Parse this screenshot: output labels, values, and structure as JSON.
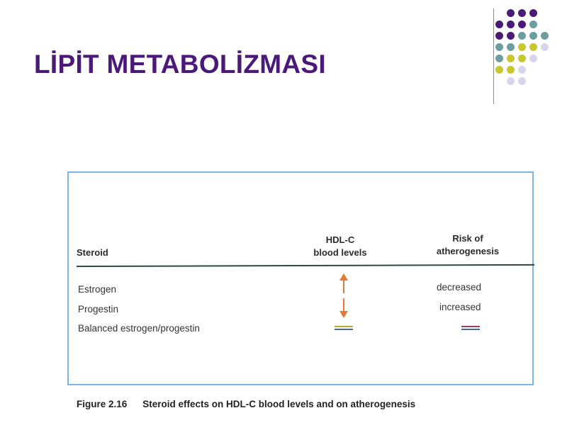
{
  "slide": {
    "title": "LİPİT METABOLİZMASI"
  },
  "decoration": {
    "dot_colors": {
      "purple": "#4b1a78",
      "teal": "#6b9ea0",
      "yellow": "#c8c82a",
      "lavender": "#d8d6ec"
    }
  },
  "figure": {
    "columns": {
      "steroid": "Steroid",
      "hdl_line1": "HDL-C",
      "hdl_line2": "blood levels",
      "risk_line1": "Risk of",
      "risk_line2": "atherogenesis"
    },
    "rows": [
      {
        "steroid": "Estrogen",
        "hdl_symbol": "up-arrow-icon",
        "risk": "decreased"
      },
      {
        "steroid": "Progestin",
        "hdl_symbol": "down-arrow-icon",
        "risk": "increased"
      },
      {
        "steroid": "Balanced estrogen/progestin",
        "hdl_symbol": "equals-icon",
        "risk_symbol": "equals-icon"
      }
    ],
    "caption_number": "Figure 2.16",
    "caption_text": "Steroid effects on HDL-C blood levels and on atherogenesis",
    "colors": {
      "arrow": "#e07a34",
      "frame": "#7fb4e0",
      "rule": "#2e4a3a"
    }
  }
}
